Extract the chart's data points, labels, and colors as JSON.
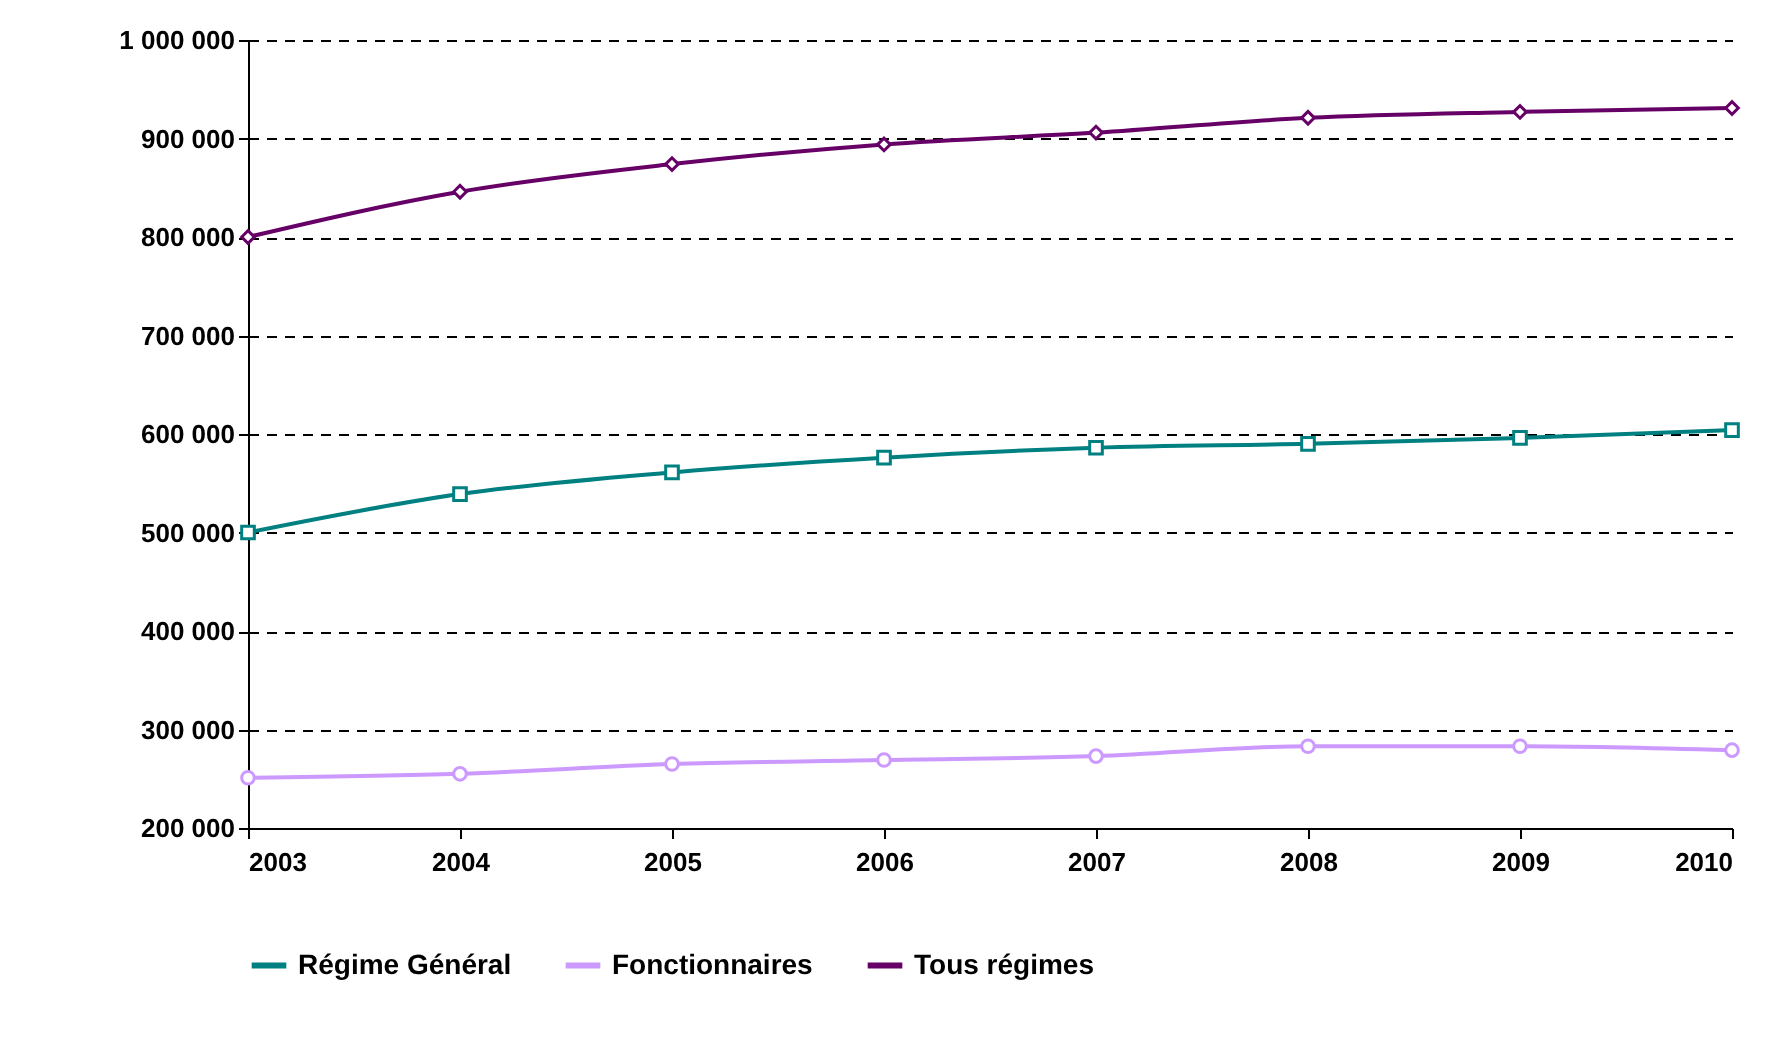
{
  "chart_data": {
    "type": "line",
    "x": [
      2003,
      2004,
      2005,
      2006,
      2007,
      2008,
      2009,
      2010
    ],
    "xlim": [
      2003,
      2010
    ],
    "xticks": [
      2003,
      2004,
      2005,
      2006,
      2007,
      2008,
      2009,
      2010
    ],
    "ylim": [
      200000,
      1000000
    ],
    "yticks": [
      {
        "value": 200000,
        "label": "200 000"
      },
      {
        "value": 300000,
        "label": "300 000"
      },
      {
        "value": 400000,
        "label": "400 000"
      },
      {
        "value": 500000,
        "label": "500 000"
      },
      {
        "value": 600000,
        "label": "600 000"
      },
      {
        "value": 700000,
        "label": "700 000"
      },
      {
        "value": 800000,
        "label": "800 000"
      },
      {
        "value": 900000,
        "label": "900 000"
      },
      {
        "value": 1000000,
        "label": "1 000 000"
      }
    ],
    "grid": "y",
    "legend": "bottom",
    "series": [
      {
        "name": "Régime Général",
        "color": "#008080",
        "marker": "square",
        "values": [
          500000,
          539000,
          561000,
          576000,
          586000,
          590000,
          596000,
          604000
        ]
      },
      {
        "name": "Fonctionnaires",
        "color": "#cc99ff",
        "marker": "circle",
        "values": [
          251000,
          255000,
          265000,
          269000,
          273000,
          283000,
          283000,
          279000
        ]
      },
      {
        "name": "Tous régimes",
        "color": "#660066",
        "marker": "diamond",
        "values": [
          800000,
          846000,
          874000,
          894000,
          906000,
          921000,
          927000,
          931000
        ]
      }
    ]
  }
}
